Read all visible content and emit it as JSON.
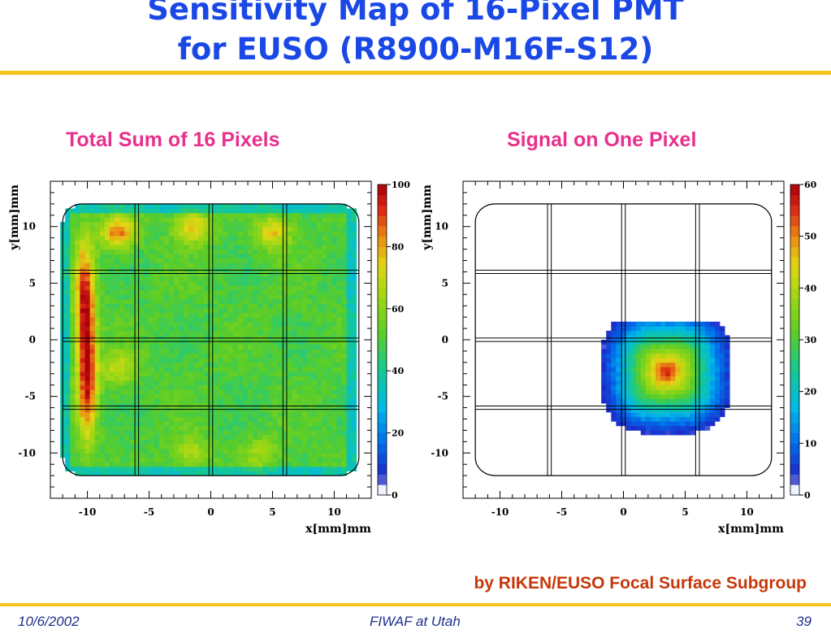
{
  "slide": {
    "title_line1": "Sensitivity Map of 16-Pixel PMT",
    "title_line2": "for EUSO (R8900-M16F-S12)",
    "credit": "by RIKEN/EUSO Focal Surface Subgroup",
    "footer": {
      "date": "10/6/2002",
      "venue": "FIWAF at Utah",
      "page": "39"
    }
  },
  "chart_data": [
    {
      "type": "heatmap",
      "title": "Total Sum of 16 Pixels",
      "xlabel": "x[mm]mm",
      "ylabel": "y[mm]mm",
      "xlim": [
        -13,
        13
      ],
      "ylim": [
        -14,
        14
      ],
      "xticks": [
        -10,
        -5,
        0,
        5,
        10
      ],
      "yticks": [
        -10,
        -5,
        0,
        5,
        10
      ],
      "zlim": [
        0,
        100
      ],
      "zticks": [
        0,
        20,
        40,
        60,
        80,
        100
      ],
      "pixel_grid_lines_mm": [
        -6,
        0,
        6
      ],
      "sensitive_area_mm": [
        -12,
        12,
        -12,
        12
      ],
      "hot_spots": [
        {
          "x": -10.2,
          "y": 3.5,
          "value": 92
        },
        {
          "x": -10.0,
          "y": -3.5,
          "value": 92
        },
        {
          "x": -7.5,
          "y": 9.5,
          "value": 85
        },
        {
          "x": -1.5,
          "y": 10.0,
          "value": 78
        },
        {
          "x": 5.0,
          "y": 9.5,
          "value": 76
        },
        {
          "x": -7.5,
          "y": -2.5,
          "value": 70
        },
        {
          "x": -1.5,
          "y": -10.0,
          "value": 66
        },
        {
          "x": 4.0,
          "y": -10.0,
          "value": 64
        }
      ],
      "typical_value": 50
    },
    {
      "type": "heatmap",
      "title": "Signal on One Pixel",
      "xlabel": "x[mm]mm",
      "ylabel": "y[mm]mm",
      "xlim": [
        -13,
        13
      ],
      "ylim": [
        -14,
        14
      ],
      "xticks": [
        -10,
        -5,
        0,
        5,
        10
      ],
      "yticks": [
        -10,
        -5,
        0,
        5,
        10
      ],
      "zlim": [
        0,
        60
      ],
      "zticks": [
        0,
        10,
        20,
        30,
        40,
        50,
        60
      ],
      "pixel_grid_lines_mm": [
        -6,
        0,
        6
      ],
      "sensitive_area_mm": [
        -12,
        12,
        -12,
        12
      ],
      "response_center_mm": [
        3.5,
        -2.8
      ],
      "response_extent_mm": [
        -1.8,
        8.8,
        -9.3,
        1.8
      ],
      "peak_value": 58
    }
  ],
  "colors": {
    "title": "#1a48e6",
    "panel_title": "#e8308c",
    "credit": "#c6370a",
    "rule": "#f6c51a",
    "footer": "#1f2f8a"
  }
}
